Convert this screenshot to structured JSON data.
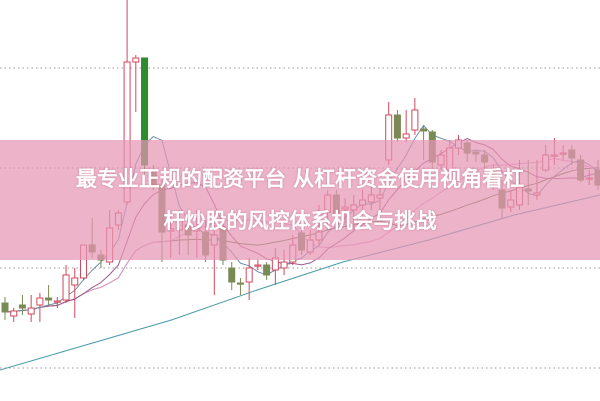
{
  "banner": {
    "line1": "最专业正规的配资平台 从杠杆资金使用视角看杠",
    "line2": "杆炒股的风控体系机会与挑战"
  },
  "colors": {
    "up": "#d2475a",
    "down": "#2e8b2e",
    "down_muted": "#7a8a55",
    "ma5": "#6f8fa8",
    "ma10": "#9a5a88",
    "ma20": "#e59ad0",
    "ma30": "#5a7a3a",
    "long": "#4a9aa8",
    "grid": "#9a9a9a",
    "banner": "#e496b4"
  },
  "chart_data": {
    "type": "candlestick",
    "title": "",
    "grid": true,
    "ylim": [
      0,
      40.1
    ],
    "candles": [
      [
        9.8,
        8.9,
        10.4,
        8.1
      ],
      [
        8.5,
        9.0,
        9.3,
        7.9
      ],
      [
        9.6,
        9.3,
        10.6,
        8.6
      ],
      [
        8.7,
        9.3,
        10.6,
        7.9
      ],
      [
        9.6,
        10.3,
        10.8,
        7.9
      ],
      [
        10.3,
        10.1,
        11.6,
        9.6
      ],
      [
        9.9,
        10.0,
        10.4,
        9.3
      ],
      [
        10.1,
        12.6,
        13.6,
        9.8
      ],
      [
        11.6,
        12.3,
        13.3,
        8.3
      ],
      [
        12.3,
        15.6,
        15.6,
        12.1
      ],
      [
        15.6,
        14.9,
        18.3,
        14.3
      ],
      [
        14.6,
        14.1,
        15.1,
        13.3
      ],
      [
        13.9,
        17.3,
        19.1,
        13.6
      ],
      [
        17.6,
        18.8,
        19.1,
        17.1
      ],
      [
        19.9,
        33.9,
        40.1,
        19.6
      ],
      [
        33.9,
        34.3,
        34.6,
        28.9
      ],
      [
        34.3,
        23.6,
        34.3,
        22.6
      ],
      [
        23.1,
        21.6,
        23.6,
        21.1
      ],
      [
        21.6,
        16.9,
        22.1,
        13.9
      ],
      [
        17.0,
        17.2,
        18.6,
        14.3
      ],
      [
        17.1,
        18.1,
        19.1,
        14.6
      ],
      [
        17.6,
        16.6,
        18.1,
        14.6
      ],
      [
        17.0,
        17.2,
        19.1,
        14.3
      ],
      [
        16.9,
        14.6,
        18.1,
        13.9
      ],
      [
        15.6,
        16.6,
        17.6,
        10.6
      ],
      [
        17.3,
        14.1,
        18.1,
        13.6
      ],
      [
        13.3,
        11.9,
        13.9,
        11.1
      ],
      [
        11.8,
        11.7,
        12.3,
        10.6
      ],
      [
        11.9,
        13.3,
        14.3,
        10.1
      ],
      [
        13.5,
        13.6,
        14.1,
        13.1
      ],
      [
        13.6,
        12.6,
        13.9,
        12.1
      ],
      [
        13.1,
        14.3,
        15.3,
        11.6
      ],
      [
        13.3,
        13.9,
        15.1,
        12.6
      ],
      [
        13.9,
        15.6,
        16.6,
        13.6
      ],
      [
        16.8,
        15.1,
        17.6,
        14.6
      ],
      [
        14.9,
        16.1,
        17.1,
        14.6
      ],
      [
        16.1,
        16.9,
        19.6,
        15.6
      ],
      [
        18.9,
        20.6,
        21.1,
        17.1
      ],
      [
        20.6,
        18.8,
        21.1,
        18.3
      ],
      [
        19.2,
        19.4,
        20.3,
        17.6
      ],
      [
        19.1,
        19.6,
        20.6,
        17.1
      ],
      [
        19.6,
        20.1,
        21.1,
        18.6
      ],
      [
        19.9,
        20.6,
        21.6,
        19.1
      ],
      [
        20.3,
        20.6,
        21.3,
        19.1
      ],
      [
        24.1,
        28.6,
        29.9,
        23.6
      ],
      [
        28.6,
        26.3,
        29.1,
        25.9
      ],
      [
        26.3,
        26.7,
        29.1,
        25.9
      ],
      [
        27.1,
        29.1,
        30.3,
        26.6
      ],
      [
        27.2,
        27.0,
        27.6,
        24.1
      ],
      [
        26.9,
        23.9,
        27.1,
        23.3
      ],
      [
        23.6,
        24.6,
        25.1,
        23.1
      ],
      [
        23.1,
        25.3,
        26.1,
        22.9
      ],
      [
        25.3,
        26.1,
        26.6,
        24.6
      ],
      [
        25.8,
        24.8,
        26.1,
        23.9
      ],
      [
        24.9,
        24.7,
        25.1,
        23.9
      ],
      [
        24.6,
        23.9,
        25.1,
        23.1
      ],
      [
        23.1,
        22.1,
        23.6,
        21.1
      ],
      [
        21.1,
        19.3,
        22.1,
        18.3
      ],
      [
        19.4,
        20.1,
        21.1,
        18.9
      ],
      [
        19.6,
        21.4,
        24.1,
        19.1
      ],
      [
        21.2,
        21.0,
        24.1,
        19.6
      ],
      [
        20.6,
        20.8,
        24.1,
        20.1
      ],
      [
        23.1,
        24.6,
        25.6,
        22.9
      ],
      [
        24.5,
        24.6,
        26.3,
        23.6
      ],
      [
        24.7,
        24.8,
        25.6,
        24.1
      ],
      [
        25.1,
        24.3,
        25.6,
        23.6
      ],
      [
        24.1,
        22.1,
        24.6,
        21.9
      ],
      [
        22.2,
        22.3,
        23.1,
        21.6
      ],
      [
        23.1,
        21.6,
        24.1,
        21.1
      ]
    ],
    "long_ma": [
      3.1,
      5.6,
      8.1,
      11.1,
      13.9,
      16.1,
      18.6,
      20.6
    ],
    "gridlines": [
      33.3,
      23.3,
      13.3,
      3.3
    ]
  }
}
